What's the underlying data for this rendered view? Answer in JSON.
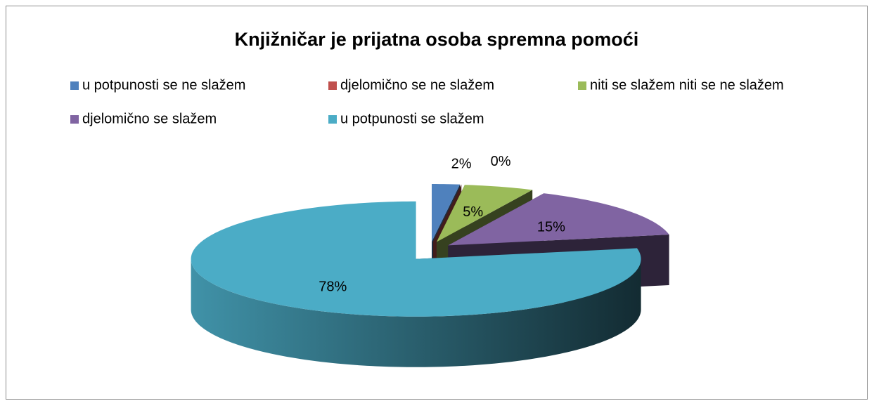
{
  "chart_data": {
    "type": "pie",
    "title": "Knjižničar je prijatna osoba spremna pomoći",
    "categories": [
      "u potpunosti se ne slažem",
      "djelomično se ne slažem",
      "niti se slažem niti se ne slažem",
      "djelomično se slažem",
      "u potpunosti se slažem"
    ],
    "values": [
      2,
      0,
      5,
      15,
      78
    ],
    "value_labels": [
      "2%",
      "0%",
      "5%",
      "15%",
      "78%"
    ],
    "colors": [
      "#4f81bd",
      "#c0504d",
      "#9bbb59",
      "#8064a2",
      "#4bacc6"
    ],
    "legend": "top"
  }
}
